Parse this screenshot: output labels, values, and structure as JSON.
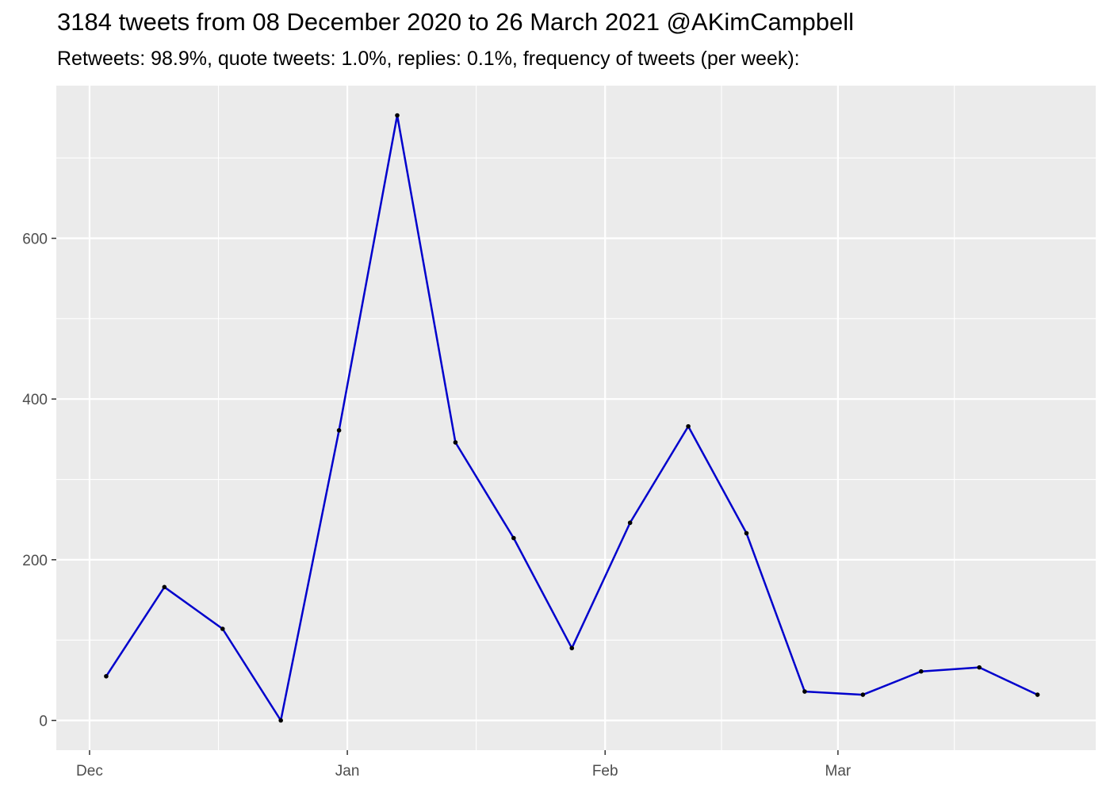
{
  "chart_data": {
    "type": "line",
    "title": "3184 tweets from 08 December 2020 to 26 March 2021 @AKimCampbell",
    "subtitle": "Retweets: 98.9%, quote tweets: 1.0%, replies: 0.1%, frequency of tweets (per week):",
    "xlabel": "",
    "ylabel": "",
    "x_tick_labels": [
      {
        "label": "Dec",
        "date": "2020-12-01"
      },
      {
        "label": "Jan",
        "date": "2021-01-01"
      },
      {
        "label": "Feb",
        "date": "2021-02-01"
      },
      {
        "label": "Mar",
        "date": "2021-03-01"
      }
    ],
    "y_tick_labels": [
      "0",
      "200",
      "400",
      "600"
    ],
    "y_ticks": [
      0,
      200,
      400,
      600
    ],
    "ylim": [
      -37,
      790
    ],
    "xlim": [
      "2020-11-27",
      "2021-04-01"
    ],
    "grid": true,
    "legend": "none",
    "colors": {
      "line": "#0000cc",
      "points": "#000000",
      "panel": "#ebebeb",
      "grid": "#ffffff"
    },
    "series": [
      {
        "dates": [
          "2020-12-03",
          "2020-12-10",
          "2020-12-17",
          "2020-12-24",
          "2020-12-31",
          "2021-01-07",
          "2021-01-14",
          "2021-01-21",
          "2021-01-28",
          "2021-02-04",
          "2021-02-11",
          "2021-02-18",
          "2021-02-25",
          "2021-03-04",
          "2021-03-11",
          "2021-03-18",
          "2021-03-25"
        ],
        "values": [
          55,
          166,
          114,
          0,
          361,
          753,
          346,
          227,
          90,
          246,
          366,
          233,
          36,
          32,
          61,
          66,
          32
        ]
      }
    ]
  }
}
